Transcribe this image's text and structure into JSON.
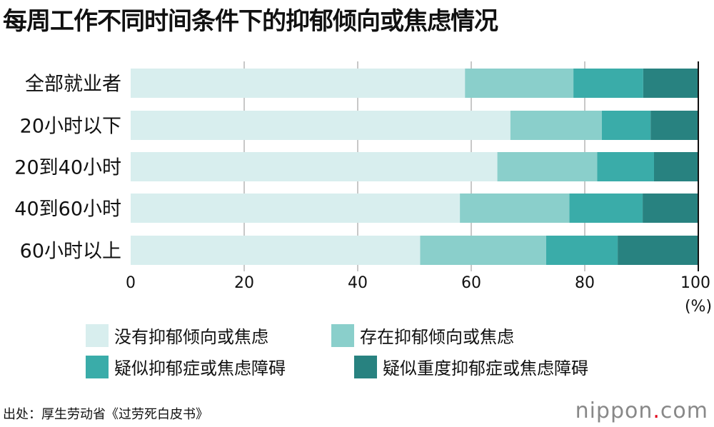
{
  "title": "每周工作不同时间条件下的抑郁倾向或焦虑情况",
  "source": "出处：厚生劳动省《过劳死白皮书》",
  "logo": {
    "name": "nippon",
    "dot": ".",
    "tld": "com"
  },
  "colors": [
    "#d8eeee",
    "#8acfcb",
    "#3aaca9",
    "#288280"
  ],
  "chart_data": {
    "type": "bar",
    "orientation": "horizontal",
    "stacked": true,
    "title": "每周工作不同时间条件下的抑郁倾向或焦虑情况",
    "categories": [
      "全部就业者",
      "20小时以下",
      "20到40小时",
      "40到60小时",
      "60小时以上"
    ],
    "series": [
      {
        "name": "没有抑郁倾向或焦虑",
        "values": [
          58.9,
          66.9,
          64.6,
          58.0,
          51.0
        ]
      },
      {
        "name": "存在抑郁倾向或焦虑",
        "values": [
          19.1,
          16.1,
          17.6,
          19.3,
          22.2
        ]
      },
      {
        "name": "疑似抑郁症或焦虑障碍",
        "values": [
          12.3,
          8.6,
          10.0,
          12.9,
          12.6
        ]
      },
      {
        "name": "疑似重度抑郁症或焦虑障碍",
        "values": [
          9.7,
          8.4,
          7.8,
          9.8,
          14.2
        ]
      }
    ],
    "xlim": [
      0,
      100
    ],
    "xticks": [
      "0",
      "20",
      "40",
      "60",
      "80",
      "100"
    ],
    "xunit": "(%)",
    "grid": true,
    "legend_position": "bottom"
  }
}
